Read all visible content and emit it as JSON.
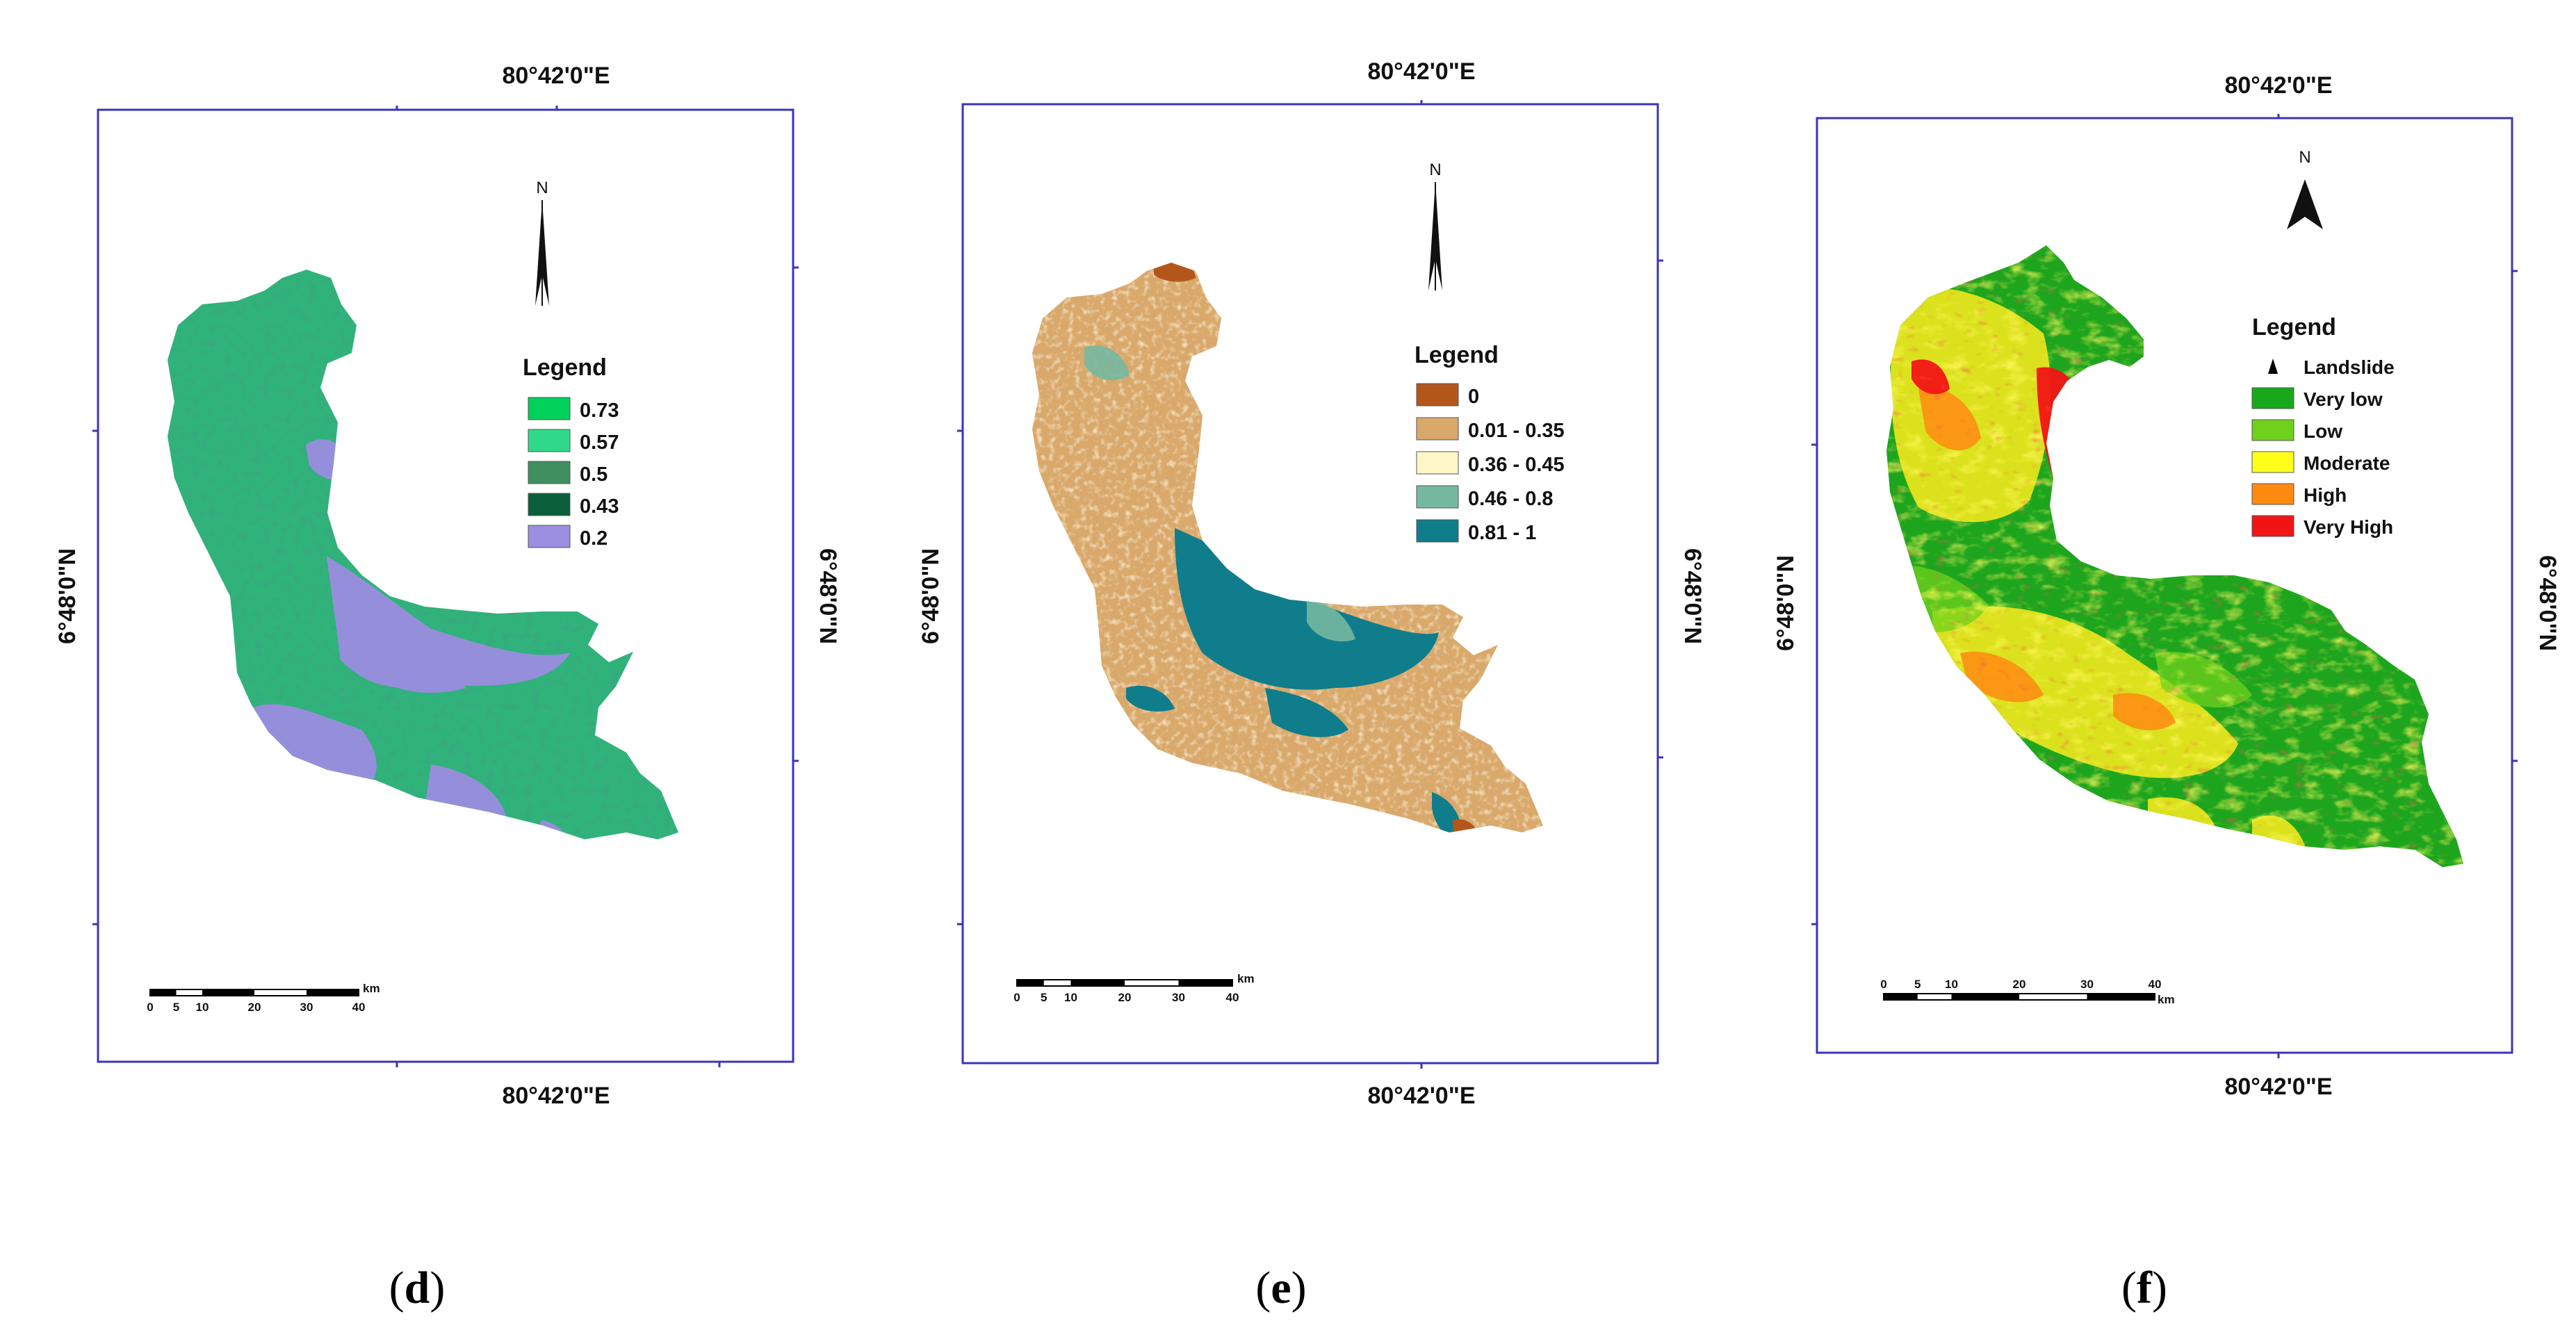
{
  "panels": [
    {
      "id": "d",
      "caption_letter": "d",
      "lon_top": "80°42'0\"E",
      "lon_bottom": "80°42'0\"E",
      "lat_left": "6°48'0\"N",
      "lat_right": "6°48'0\"N",
      "north": "N",
      "legend_title": "Legend",
      "legend": [
        {
          "label": "0.73",
          "color": "#00d15a"
        },
        {
          "label": "0.57",
          "color": "#30d989"
        },
        {
          "label": "0.5",
          "color": "#3f8f5f"
        },
        {
          "label": "0.43",
          "color": "#0b5f3a"
        },
        {
          "label": "0.2",
          "color": "#9b8de0"
        }
      ],
      "scale_ticks": [
        "0",
        "5",
        "10",
        "20",
        "30",
        "40"
      ],
      "scale_unit": "km"
    },
    {
      "id": "e",
      "caption_letter": "e",
      "lon_top": "80°42'0\"E",
      "lon_bottom": "80°42'0\"E",
      "lat_left": "6°48'0\"N",
      "lat_right": "6°48'0\"N",
      "north": "N",
      "legend_title": "Legend",
      "legend": [
        {
          "label": "0",
          "color": "#b3561a"
        },
        {
          "label": "0.01 - 0.35",
          "color": "#d9a86b"
        },
        {
          "label": "0.36 - 0.45",
          "color": "#fff6c8"
        },
        {
          "label": "0.46 - 0.8",
          "color": "#75b8a0"
        },
        {
          "label": "0.81 - 1",
          "color": "#0f7d8c"
        }
      ],
      "scale_ticks": [
        "0",
        "5",
        "10",
        "20",
        "30",
        "40"
      ],
      "scale_unit": "km"
    },
    {
      "id": "f",
      "caption_letter": "f",
      "lon_top": "80°42'0\"E",
      "lon_bottom": "80°42'0\"E",
      "lat_left": "6°48'0\"N",
      "lat_right": "6°48'0\"N",
      "north": "N",
      "legend_title": "Legend",
      "legend": [
        {
          "label": "Landslide",
          "color": "#000000",
          "symbol": "triangle"
        },
        {
          "label": "Very low",
          "color": "#19a81a"
        },
        {
          "label": "Low",
          "color": "#6fd11c"
        },
        {
          "label": "Moderate",
          "color": "#ffff1a"
        },
        {
          "label": "High",
          "color": "#ff8a12"
        },
        {
          "label": "Very High",
          "color": "#f21414"
        }
      ],
      "scale_ticks": [
        "0",
        "5",
        "10",
        "20",
        "30",
        "40"
      ],
      "scale_unit": "km"
    }
  ],
  "colors": {
    "frame": "#3a35b8",
    "panel_d_base": "#2fb37a",
    "panel_e_base": "#d9a86b",
    "panel_f_base": "#1ea51e"
  }
}
